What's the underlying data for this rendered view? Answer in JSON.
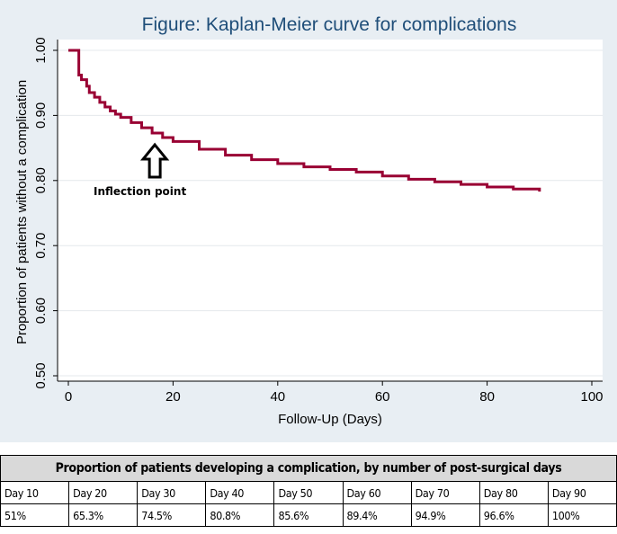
{
  "chart_data": {
    "type": "line",
    "title": "Figure: Kaplan-Meier curve for complications",
    "xlabel": "Follow-Up (Days)",
    "ylabel": "Proportion of patients without a complication",
    "xlim": [
      0,
      100
    ],
    "ylim": [
      0.5,
      1.0
    ],
    "xticks": [
      0,
      20,
      40,
      60,
      80,
      100
    ],
    "yticks": [
      "0.50",
      "0.60",
      "0.70",
      "0.80",
      "0.90",
      "1.00"
    ],
    "grid": true,
    "series": [
      {
        "color": "#990033",
        "step": true,
        "x": [
          0,
          2,
          2.5,
          3.5,
          4,
          5,
          6,
          7,
          8,
          9,
          10,
          12,
          14,
          16,
          18,
          20,
          25,
          30,
          35,
          40,
          45,
          50,
          55,
          60,
          65,
          70,
          75,
          80,
          85,
          90
        ],
        "y": [
          1.0,
          0.962,
          0.955,
          0.945,
          0.935,
          0.928,
          0.92,
          0.913,
          0.907,
          0.902,
          0.897,
          0.889,
          0.881,
          0.873,
          0.866,
          0.86,
          0.848,
          0.839,
          0.832,
          0.826,
          0.821,
          0.817,
          0.813,
          0.807,
          0.802,
          0.798,
          0.794,
          0.79,
          0.787,
          0.783
        ]
      }
    ],
    "annotation": {
      "text": "Inflection point",
      "x": 16,
      "y": 0.866
    }
  },
  "table": {
    "title": "Proportion of patients developing a complication, by number of post-surgical days",
    "headers": [
      "Day 10",
      "Day 20",
      "Day 30",
      "Day 40",
      "Day 50",
      "Day 60",
      "Day 70",
      "Day 80",
      "Day 90"
    ],
    "values": [
      "51%",
      "65.3%",
      "74.5%",
      "80.8%",
      "85.6%",
      "89.4%",
      "94.9%",
      "96.6%",
      "100%"
    ]
  },
  "colors": {
    "plot_background": "#ffffff",
    "outer_background": "#e8eef3",
    "title": "#1f4e79",
    "curve": "#990033",
    "gridline": "#e4e8ec"
  }
}
